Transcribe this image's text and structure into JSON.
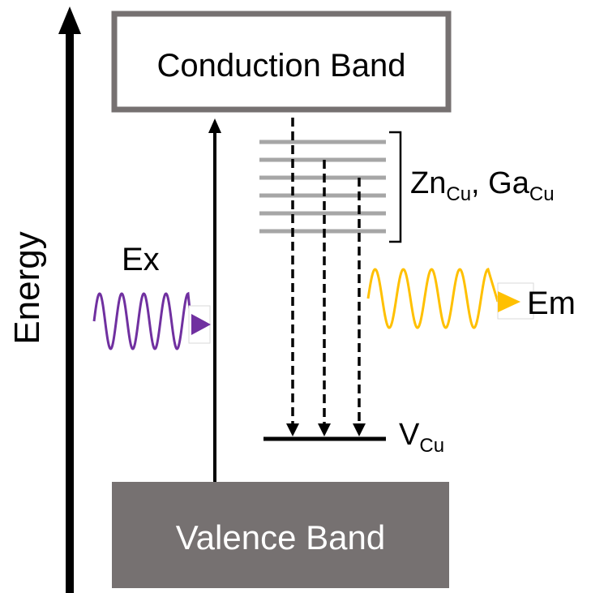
{
  "axis": {
    "label": "Energy"
  },
  "bands": {
    "conduction": "Conduction Band",
    "valence": "Valence Band"
  },
  "defects": {
    "donor_label_1": "Zn",
    "donor_sub_1": "Cu",
    "donor_sep": ", ",
    "donor_label_2": "Ga",
    "donor_sub_2": "Cu",
    "acceptor_label": "V",
    "acceptor_sub": "Cu",
    "donor_level_count": 6
  },
  "excitation": {
    "label": "Ex",
    "color": "#7030A0"
  },
  "emission": {
    "label": "Em",
    "color": "#FFC000"
  },
  "colors": {
    "conduction_border": "#767171",
    "valence_fill": "#767171",
    "valence_text": "#ffffff",
    "donor_levels": "#A6A6A6"
  }
}
